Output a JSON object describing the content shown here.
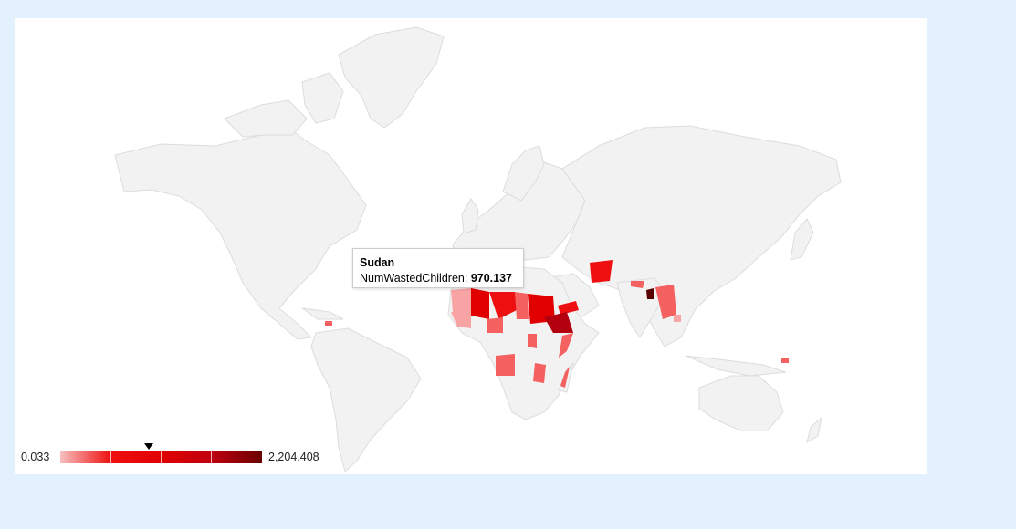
{
  "map": {
    "metric_name": "NumWastedChildren",
    "color_min": "#f7c0c0",
    "color_max": "#6a0000",
    "background": "#e3f0fd"
  },
  "tooltip": {
    "country": "Sudan",
    "metric_label": "NumWastedChildren:",
    "metric_value": "970.137"
  },
  "legend": {
    "min_label": "0.033",
    "max_label": "2,204.408",
    "marker_value": 970.137,
    "min_value": 0.033,
    "max_value": 2204.408
  }
}
